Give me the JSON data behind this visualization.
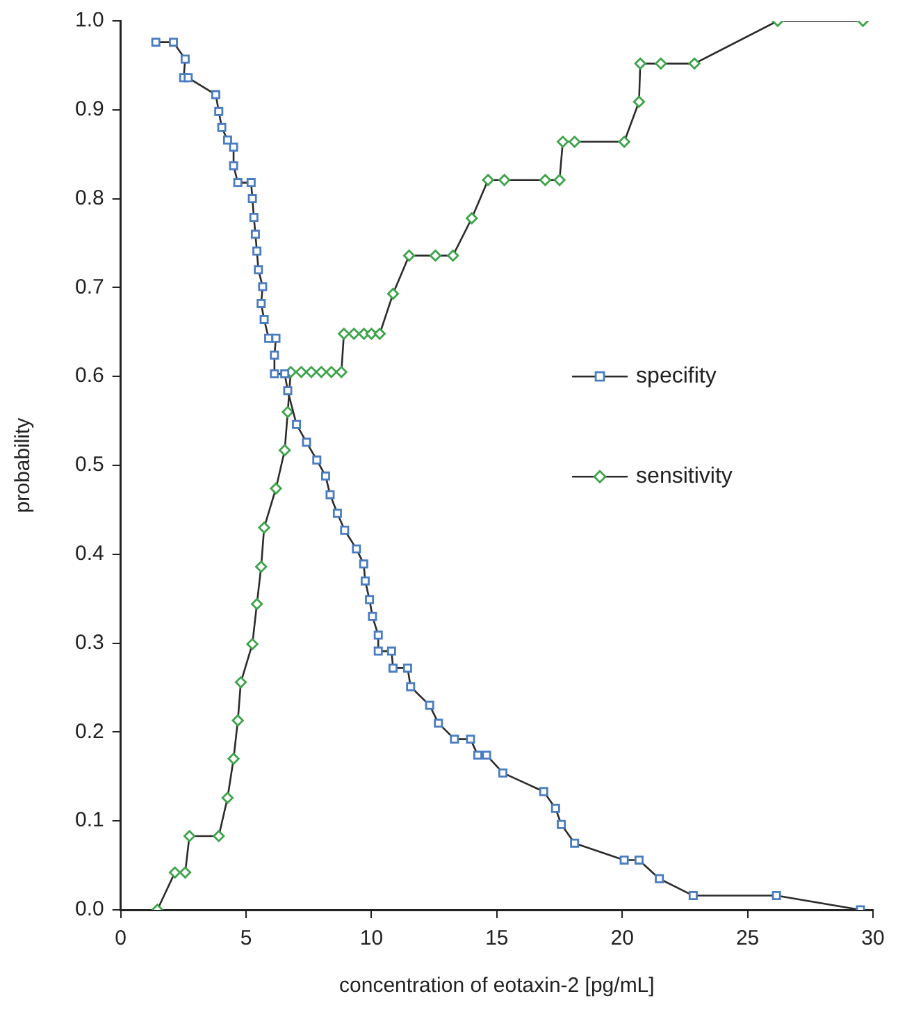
{
  "chart_data": {
    "type": "line",
    "xlabel": "concentration of eotaxin-2 [pg/mL]",
    "ylabel": "probability",
    "xlim": [
      0,
      30
    ],
    "xticks": [
      0,
      5,
      10,
      15,
      20,
      25,
      30
    ],
    "ylim": [
      0,
      1
    ],
    "yticks": [
      {
        "value": 0,
        "label": "0.0"
      },
      {
        "value": 0.1,
        "label": "0.1"
      },
      {
        "value": 0.2,
        "label": "0.2"
      },
      {
        "value": 0.3,
        "label": "0.3"
      },
      {
        "value": 0.4,
        "label": "0.4"
      },
      {
        "value": 0.5,
        "label": "0.5"
      },
      {
        "value": 0.6,
        "label": "0.6"
      },
      {
        "value": 0.7,
        "label": "0.7"
      },
      {
        "value": 0.8,
        "label": "0.8"
      },
      {
        "value": 0.9,
        "label": "0.9"
      },
      {
        "value": 1,
        "label": "1.0"
      }
    ],
    "grid": false,
    "legend": "right",
    "line_style": "solid",
    "series": [
      {
        "name": "specifity",
        "color": "#4a7cc0",
        "marker": "square",
        "x": [
          1.4,
          2.1,
          2.57,
          2.51,
          2.69,
          3.79,
          3.91,
          4.03,
          4.26,
          4.5,
          4.5,
          4.67,
          5.2,
          5.25,
          5.31,
          5.37,
          5.43,
          5.49,
          5.66,
          5.6,
          5.72,
          5.9,
          6.19,
          6.13,
          6.13,
          6.54,
          6.66,
          7.01,
          7.41,
          7.82,
          8.17,
          8.35,
          8.64,
          8.93,
          9.4,
          9.69,
          9.75,
          9.92,
          10.04,
          10.27,
          10.27,
          10.8,
          10.86,
          11.44,
          11.56,
          12.32,
          12.67,
          13.31,
          13.95,
          14.24,
          14.59,
          15.24,
          16.87,
          17.34,
          17.57,
          18.1,
          20.08,
          20.67,
          21.48,
          22.83,
          26.15,
          29.5
        ],
        "values": [
          0.976,
          0.976,
          0.957,
          0.936,
          0.936,
          0.917,
          0.898,
          0.88,
          0.866,
          0.858,
          0.837,
          0.818,
          0.818,
          0.8,
          0.779,
          0.76,
          0.741,
          0.72,
          0.701,
          0.682,
          0.664,
          0.643,
          0.643,
          0.624,
          0.603,
          0.603,
          0.584,
          0.546,
          0.526,
          0.506,
          0.488,
          0.467,
          0.446,
          0.427,
          0.406,
          0.389,
          0.37,
          0.349,
          0.33,
          0.309,
          0.291,
          0.291,
          0.272,
          0.272,
          0.251,
          0.23,
          0.21,
          0.192,
          0.192,
          0.174,
          0.174,
          0.154,
          0.133,
          0.114,
          0.096,
          0.075,
          0.056,
          0.056,
          0.035,
          0.016,
          0.016,
          0
        ]
      },
      {
        "name": "sensitivity",
        "color": "#3da34a",
        "marker": "diamond",
        "x": [
          1.46,
          2.16,
          2.57,
          2.74,
          3.91,
          4.26,
          4.5,
          4.67,
          4.79,
          5.25,
          5.43,
          5.6,
          5.72,
          6.19,
          6.54,
          6.66,
          6.78,
          7.2,
          7.6,
          8.0,
          8.4,
          8.8,
          8.9,
          9.3,
          9.7,
          10.0,
          10.33,
          10.86,
          11.5,
          12.55,
          13.25,
          14.0,
          14.65,
          15.3,
          16.93,
          17.5,
          17.63,
          18.1,
          20.08,
          20.67,
          20.72,
          21.54,
          22.88,
          26.2,
          29.6
        ],
        "values": [
          0,
          0.042,
          0.042,
          0.083,
          0.083,
          0.126,
          0.17,
          0.213,
          0.256,
          0.299,
          0.344,
          0.386,
          0.43,
          0.474,
          0.517,
          0.56,
          0.605,
          0.605,
          0.605,
          0.605,
          0.605,
          0.605,
          0.648,
          0.648,
          0.648,
          0.648,
          0.648,
          0.693,
          0.736,
          0.736,
          0.736,
          0.778,
          0.821,
          0.821,
          0.821,
          0.821,
          0.864,
          0.864,
          0.864,
          0.909,
          0.952,
          0.952,
          0.952,
          1,
          1
        ]
      }
    ]
  }
}
